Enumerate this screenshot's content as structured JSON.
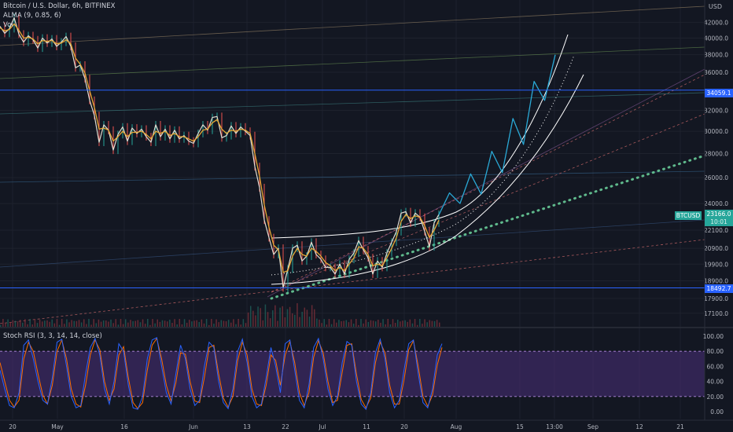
{
  "header": {
    "title": "Bitcoin / U.S. Dollar, 6h, BITFINEX",
    "indicator_alma": "ALMA (9, 0.85, 6)",
    "indicator_vol": "Vol",
    "currency": "USD"
  },
  "stoch_panel": {
    "label": "Stoch RSI (3, 3, 14, 14, close)"
  },
  "colors": {
    "background": "#131722",
    "grid": "#1e222d",
    "candle": "#e0dcd0",
    "alma": "#e6a836",
    "channel": "#ffffff",
    "projection": "#2aa9d6",
    "trend_dotted": "#5fb98c",
    "level": "#2962ff",
    "btc_tag": "#26a69a",
    "stoch_k": "#2962ff",
    "stoch_d": "#ff6d00",
    "stoch_band": "#4a2f7a"
  },
  "price_tags": {
    "upper_level": "34059.1",
    "btcusd_label": "BTCUSD",
    "btcusd_price": "23166.0",
    "btcusd_time": "10:01",
    "lower_level": "18492.7"
  },
  "chart_data": {
    "type": "line",
    "title": "Bitcoin / U.S. Dollar, 6h, BITFINEX",
    "xlabel": "",
    "ylabel": "",
    "y_scale": "log",
    "ylim": [
      16500,
      44500
    ],
    "x_tick_labels": [
      "20",
      "May",
      "16",
      "Jun",
      "13",
      "22",
      "Jul",
      "11",
      "20",
      "Aug",
      "15",
      "13:00",
      "Sep",
      "12",
      "21"
    ],
    "y_tick_labels": [
      "42000.0",
      "40000.0",
      "38000.0",
      "36000.0",
      "32000.0",
      "30000.0",
      "28000.0",
      "26000.0",
      "24000.0",
      "22100.0",
      "20900.0",
      "19900.0",
      "18900.0",
      "17900.0",
      "17100.0"
    ],
    "series": [
      {
        "values": [
          41500,
          40600,
          41200,
          42600,
          40500,
          39500,
          40300,
          39800,
          38800,
          40000,
          39400,
          39900,
          39000,
          39500,
          40200,
          39000,
          36500,
          36800,
          35300,
          33000,
          31500,
          29000,
          30600,
          30100,
          28300,
          29700,
          30400,
          29100,
          30300,
          29800,
          30200,
          29500,
          29000,
          30600,
          29500,
          30200,
          29300,
          30100,
          29300,
          29600,
          29100,
          28900,
          29800,
          30600,
          30100,
          31300,
          31400,
          29400,
          29600,
          30500,
          29800,
          30400,
          30000,
          29600,
          26900,
          25200,
          22800,
          21600,
          20500,
          20900,
          18500,
          19600,
          20900,
          21100,
          20100,
          20400,
          21300,
          20500,
          20200,
          19700,
          19700,
          19300,
          19900,
          19300,
          20200,
          20600,
          21400,
          20800,
          20300,
          19300,
          20100,
          19700,
          20600,
          21300,
          22000,
          23300,
          23400,
          22600,
          23300,
          23000,
          22000,
          21000,
          22600,
          23200
        ]
      },
      {
        "name": "ALMA (9, 0.85, 6)",
        "values": [
          41300,
          40900,
          41100,
          41800,
          41000,
          40000,
          40100,
          39900,
          39300,
          39700,
          39600,
          39700,
          39300,
          39400,
          39800,
          39300,
          37600,
          36900,
          35900,
          34000,
          32300,
          30200,
          30300,
          30100,
          29100,
          29500,
          30000,
          29500,
          29900,
          29900,
          30000,
          29700,
          29300,
          30000,
          29800,
          30000,
          29600,
          29800,
          29500,
          29500,
          29300,
          29100,
          29500,
          30100,
          30200,
          30800,
          31100,
          30200,
          29800,
          30100,
          30000,
          30200,
          30100,
          29800,
          28000,
          26100,
          23900,
          22300,
          21100,
          20800,
          19400,
          19500,
          20400,
          20900,
          20500,
          20400,
          20900,
          20700,
          20400,
          20000,
          19800,
          19500,
          19700,
          19500,
          19900,
          20300,
          21000,
          20900,
          20500,
          19800,
          19900,
          19800,
          20300,
          20900,
          21600,
          22700,
          23200,
          22900,
          23100,
          23000,
          22400,
          21600,
          22100,
          22800
        ]
      },
      {
        "name": "Projection",
        "values": [
          23166,
          24800,
          24000,
          26300,
          24700,
          28200,
          26400,
          31200,
          28800,
          35000,
          33000,
          38000
        ]
      }
    ],
    "horizontal_levels": [
      34059.1,
      18492.7
    ],
    "current_price": 23166.0,
    "stoch_rsi": {
      "label": "Stoch RSI (3, 3, 14, 14, close)",
      "ylim": [
        0,
        100
      ],
      "y_tick_labels": [
        "100.00",
        "80.00",
        "60.00",
        "40.00",
        "20.00",
        "0.00"
      ],
      "band": [
        20,
        80
      ],
      "k_values": [
        55,
        30,
        8,
        5,
        25,
        88,
        95,
        70,
        40,
        15,
        10,
        45,
        92,
        96,
        60,
        20,
        5,
        8,
        50,
        85,
        97,
        75,
        30,
        10,
        40,
        90,
        80,
        35,
        5,
        3,
        20,
        70,
        95,
        98,
        60,
        25,
        10,
        50,
        88,
        70,
        30,
        8,
        15,
        60,
        92,
        85,
        40,
        12,
        4,
        30,
        80,
        96,
        65,
        20,
        5,
        10,
        45,
        85,
        60,
        25,
        90,
        95,
        55,
        15,
        5,
        35,
        85,
        97,
        70,
        30,
        8,
        20,
        65,
        93,
        88,
        40,
        10,
        3,
        25,
        78,
        96,
        70,
        25,
        5,
        15,
        55,
        90,
        95,
        50,
        12,
        5,
        30,
        75,
        90
      ],
      "d_values": [
        65,
        40,
        15,
        6,
        15,
        70,
        92,
        80,
        50,
        22,
        10,
        35,
        80,
        95,
        70,
        30,
        10,
        6,
        35,
        75,
        95,
        82,
        40,
        15,
        30,
        75,
        86,
        45,
        12,
        4,
        12,
        55,
        88,
        97,
        70,
        35,
        14,
        38,
        78,
        76,
        40,
        14,
        12,
        45,
        85,
        88,
        50,
        18,
        6,
        20,
        68,
        92,
        75,
        30,
        10,
        8,
        35,
        75,
        68,
        35,
        75,
        93,
        65,
        25,
        8,
        25,
        72,
        94,
        78,
        40,
        12,
        15,
        52,
        88,
        90,
        50,
        16,
        5,
        18,
        65,
        92,
        78,
        35,
        10,
        10,
        42,
        82,
        94,
        60,
        20,
        7,
        22,
        62,
        85
      ]
    }
  }
}
